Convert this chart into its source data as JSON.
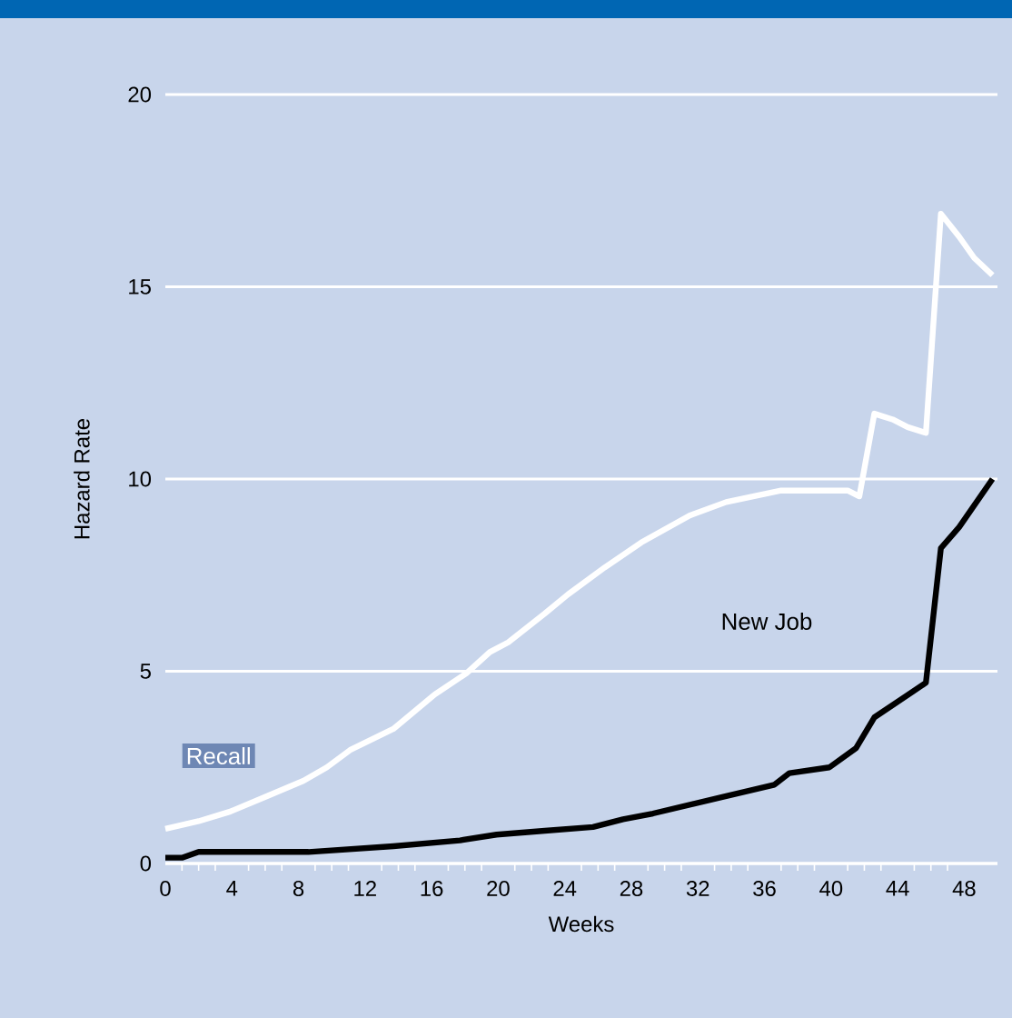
{
  "chart_data": {
    "type": "line",
    "xlabel": "Weeks",
    "ylabel": "Hazard Rate",
    "xlim": [
      0,
      50
    ],
    "ylim": [
      0,
      20
    ],
    "xticks": [
      0,
      4,
      8,
      12,
      16,
      20,
      24,
      28,
      32,
      36,
      40,
      44,
      48
    ],
    "yticks": [
      0,
      5,
      10,
      15,
      20
    ],
    "grid": "y",
    "legend": false,
    "marker": "none",
    "line_style": "solid",
    "series": [
      {
        "name": "Recall",
        "color": "#ffffff",
        "x": [
          0,
          2,
          3.9,
          6.1,
          8.3,
          9.7,
          11.1,
          13.7,
          16.2,
          18.1,
          19.5,
          20.6,
          22.8,
          24.2,
          26.4,
          28.6,
          31.5,
          33.7,
          37,
          41,
          41.7,
          42.6,
          43.7,
          44.6,
          45.7,
          46.6,
          47.7,
          48.6,
          49.7
        ],
        "values": [
          0.9,
          1.1,
          1.35,
          1.75,
          2.15,
          2.5,
          2.95,
          3.5,
          4.4,
          4.95,
          5.5,
          5.75,
          6.5,
          7.0,
          7.7,
          8.35,
          9.05,
          9.4,
          9.7,
          9.7,
          9.55,
          11.7,
          11.55,
          11.35,
          11.2,
          16.9,
          16.3,
          15.75,
          15.3
        ]
      },
      {
        "name": "New Job",
        "color": "#000000",
        "x": [
          0,
          1,
          2,
          8.6,
          13.7,
          17.7,
          19.9,
          22.8,
          25.7,
          27.5,
          29.3,
          33.7,
          36.6,
          37.5,
          39.9,
          41.5,
          42.6,
          45.7,
          46.6,
          47.7,
          49.7
        ],
        "values": [
          0.15,
          0.15,
          0.3,
          0.3,
          0.45,
          0.6,
          0.75,
          0.85,
          0.95,
          1.15,
          1.3,
          1.75,
          2.05,
          2.35,
          2.5,
          3.0,
          3.8,
          4.7,
          8.2,
          8.75,
          10.0
        ]
      }
    ]
  }
}
